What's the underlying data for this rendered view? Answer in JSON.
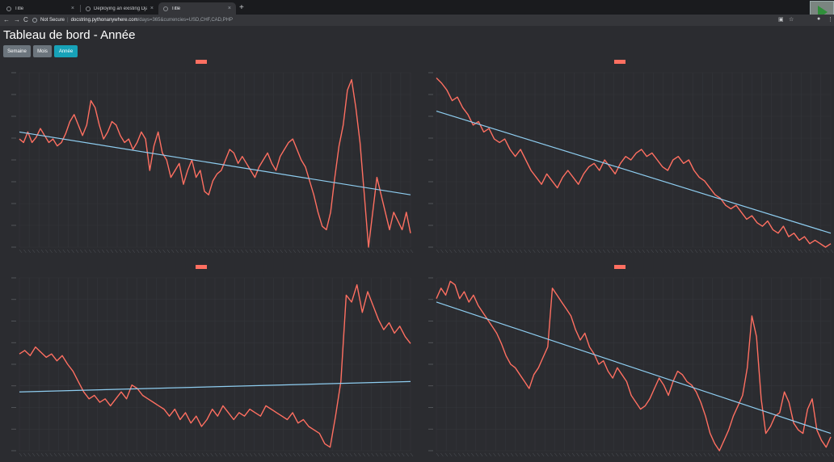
{
  "browser": {
    "tabs": [
      {
        "title": "Title",
        "close": "×",
        "active": false
      },
      {
        "title": "Deploying an existing Django",
        "close": "×",
        "active": false
      },
      {
        "title": "Title",
        "close": "×",
        "active": true
      }
    ],
    "new_tab": "+",
    "nav": {
      "back": "←",
      "forward": "→",
      "reload": "C"
    },
    "security": "Not Secure",
    "url_host": "docstring.pythonanywhere.com",
    "url_path": "/days=365&currencies=USD,CHF,CAD,PHP",
    "icons": [
      "info-icon",
      "translate-icon",
      "star-icon",
      "profile-icon",
      "menu-icon"
    ]
  },
  "page": {
    "title": "Tableau de bord - Année",
    "buttons": [
      {
        "label": "Semaine",
        "state": "secondary"
      },
      {
        "label": "Mois",
        "state": "secondary"
      },
      {
        "label": "Année",
        "state": "primary"
      }
    ]
  },
  "colors": {
    "series": "#ff6f61",
    "trend": "#8ecdf0",
    "grid": "#34363b",
    "primary": "#17a2b8",
    "secondary": "#6c757d"
  },
  "chart_data": [
    {
      "type": "line",
      "series": [
        {
          "values": [
            0.62,
            0.6,
            0.66,
            0.6,
            0.63,
            0.68,
            0.64,
            0.6,
            0.62,
            0.58,
            0.6,
            0.65,
            0.72,
            0.76,
            0.7,
            0.64,
            0.7,
            0.84,
            0.8,
            0.7,
            0.62,
            0.66,
            0.72,
            0.7,
            0.64,
            0.6,
            0.62,
            0.56,
            0.6,
            0.66,
            0.62,
            0.44,
            0.58,
            0.66,
            0.54,
            0.5,
            0.4,
            0.44,
            0.48,
            0.36,
            0.44,
            0.5,
            0.4,
            0.44,
            0.32,
            0.3,
            0.38,
            0.42,
            0.44,
            0.5,
            0.56,
            0.54,
            0.48,
            0.52,
            0.48,
            0.44,
            0.4,
            0.46,
            0.5,
            0.54,
            0.48,
            0.44,
            0.52,
            0.56,
            0.6,
            0.62,
            0.56,
            0.5,
            0.46,
            0.38,
            0.3,
            0.2,
            0.12,
            0.1,
            0.2,
            0.4,
            0.58,
            0.7,
            0.9,
            0.96,
            0.8,
            0.6,
            0.3,
            0.0,
            0.2,
            0.4,
            0.3,
            0.2,
            0.1,
            0.2,
            0.15,
            0.1,
            0.2,
            0.08
          ]
        }
      ],
      "trend": [
        0.66,
        0.3
      ]
    },
    {
      "type": "line",
      "series": [
        {
          "values": [
            0.97,
            0.94,
            0.9,
            0.84,
            0.86,
            0.8,
            0.76,
            0.7,
            0.72,
            0.66,
            0.68,
            0.62,
            0.6,
            0.62,
            0.56,
            0.52,
            0.56,
            0.5,
            0.44,
            0.4,
            0.36,
            0.42,
            0.38,
            0.34,
            0.4,
            0.44,
            0.4,
            0.36,
            0.42,
            0.46,
            0.48,
            0.44,
            0.5,
            0.46,
            0.42,
            0.48,
            0.52,
            0.5,
            0.54,
            0.56,
            0.52,
            0.54,
            0.5,
            0.46,
            0.44,
            0.5,
            0.52,
            0.48,
            0.5,
            0.44,
            0.4,
            0.38,
            0.34,
            0.3,
            0.28,
            0.24,
            0.22,
            0.24,
            0.2,
            0.16,
            0.18,
            0.14,
            0.12,
            0.15,
            0.1,
            0.08,
            0.12,
            0.06,
            0.08,
            0.04,
            0.06,
            0.02,
            0.04,
            0.02,
            0.0,
            0.02
          ]
        }
      ],
      "trend": [
        0.78,
        0.08
      ]
    },
    {
      "type": "line",
      "series": [
        {
          "values": [
            0.56,
            0.58,
            0.55,
            0.6,
            0.57,
            0.54,
            0.56,
            0.52,
            0.55,
            0.5,
            0.46,
            0.4,
            0.34,
            0.3,
            0.32,
            0.28,
            0.3,
            0.26,
            0.3,
            0.34,
            0.3,
            0.38,
            0.36,
            0.32,
            0.3,
            0.28,
            0.26,
            0.24,
            0.2,
            0.24,
            0.18,
            0.22,
            0.16,
            0.2,
            0.14,
            0.18,
            0.24,
            0.2,
            0.26,
            0.22,
            0.18,
            0.22,
            0.2,
            0.24,
            0.22,
            0.2,
            0.26,
            0.24,
            0.22,
            0.2,
            0.18,
            0.22,
            0.16,
            0.18,
            0.14,
            0.12,
            0.1,
            0.04,
            0.02,
            0.2,
            0.4,
            0.9,
            0.86,
            0.96,
            0.8,
            0.92,
            0.84,
            0.76,
            0.7,
            0.74,
            0.68,
            0.72,
            0.66,
            0.62
          ]
        }
      ],
      "trend": [
        0.34,
        0.4
      ]
    },
    {
      "type": "line",
      "series": [
        {
          "values": [
            0.88,
            0.94,
            0.9,
            0.98,
            0.96,
            0.88,
            0.92,
            0.86,
            0.9,
            0.84,
            0.8,
            0.76,
            0.72,
            0.68,
            0.62,
            0.55,
            0.5,
            0.48,
            0.44,
            0.4,
            0.36,
            0.44,
            0.48,
            0.54,
            0.6,
            0.94,
            0.9,
            0.86,
            0.82,
            0.78,
            0.7,
            0.64,
            0.68,
            0.6,
            0.56,
            0.5,
            0.52,
            0.46,
            0.42,
            0.48,
            0.44,
            0.4,
            0.32,
            0.28,
            0.24,
            0.26,
            0.3,
            0.36,
            0.42,
            0.38,
            0.32,
            0.4,
            0.46,
            0.44,
            0.4,
            0.38,
            0.34,
            0.28,
            0.2,
            0.1,
            0.04,
            0.0,
            0.06,
            0.12,
            0.2,
            0.26,
            0.32,
            0.48,
            0.78,
            0.66,
            0.3,
            0.1,
            0.14,
            0.2,
            0.22,
            0.34,
            0.28,
            0.16,
            0.12,
            0.1,
            0.24,
            0.3,
            0.12,
            0.06,
            0.02,
            0.08
          ]
        }
      ],
      "trend": [
        0.86,
        0.1
      ]
    }
  ]
}
